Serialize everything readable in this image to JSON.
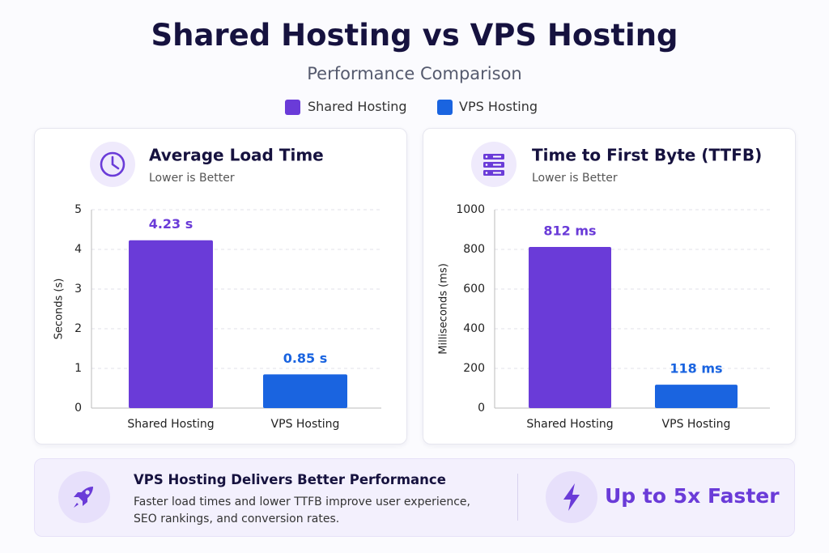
{
  "title": "Shared Hosting vs VPS Hosting",
  "subtitle": "Performance Comparison",
  "legend": [
    {
      "name": "Shared Hosting",
      "color": "#6a3bd8"
    },
    {
      "name": "VPS Hosting",
      "color": "#1a64e0"
    }
  ],
  "chart_data": [
    {
      "type": "bar",
      "title": "Average Load Time",
      "subtitle": "Lower is Better",
      "categories": [
        "Shared Hosting",
        "VPS Hosting"
      ],
      "values": [
        4.23,
        0.85
      ],
      "value_labels": [
        "4.23 s",
        "0.85 s"
      ],
      "colors": [
        "#6a3bd8",
        "#1a64e0"
      ],
      "y_label": "Seconds (s)",
      "ylim": [
        0,
        5
      ],
      "yticks": [
        0,
        1,
        2,
        3,
        4,
        5
      ],
      "grid": true
    },
    {
      "type": "bar",
      "title": "Time to First Byte (TTFB)",
      "subtitle": "Lower is Better",
      "categories": [
        "Shared Hosting",
        "VPS Hosting"
      ],
      "values": [
        812,
        118
      ],
      "value_labels": [
        "812 ms",
        "118 ms"
      ],
      "colors": [
        "#6a3bd8",
        "#1a64e0"
      ],
      "y_label": "Milliseconds (ms)",
      "ylim": [
        0,
        1000
      ],
      "yticks": [
        0,
        200,
        400,
        600,
        800,
        1000
      ],
      "grid": true
    }
  ],
  "footer": {
    "title": "VPS Hosting Delivers Better Performance",
    "text": "Faster load times and lower TTFB improve user experience, SEO rankings, and conversion rates.",
    "highlight": "Up to 5x Faster"
  }
}
